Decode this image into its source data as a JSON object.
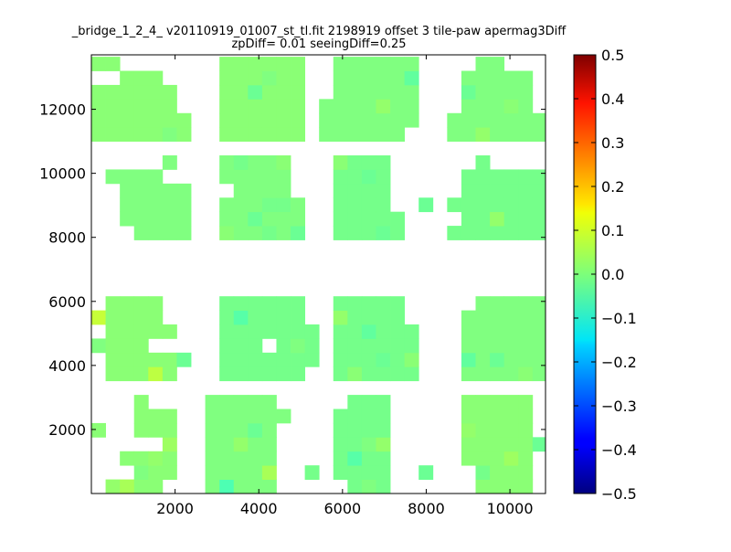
{
  "chart_data": {
    "type": "heatmap",
    "title_line1": "_bridge_1_2_4_ v20110919_01007_st_tl.fit 2198919 offset 3 tile-paw apermag3Diff",
    "title_line2": "zpDiff= 0.01 seeingDiff=0.25",
    "xlim": [
      0,
      10850
    ],
    "ylim": [
      0,
      13700
    ],
    "x_ticks": [
      2000,
      4000,
      6000,
      8000,
      10000
    ],
    "y_ticks": [
      2000,
      4000,
      6000,
      8000,
      10000,
      12000
    ],
    "colorbar": {
      "colormap": "jet",
      "vmin": -0.5,
      "vmax": 0.5,
      "ticks": [
        "0.5",
        "0.4",
        "0.3",
        "0.2",
        "0.1",
        "0.0",
        "−0.1",
        "−0.2",
        "−0.3",
        "−0.4",
        "−0.5"
      ]
    },
    "cell_size": [
      340,
      440
    ],
    "grid_origin": [
      0,
      0
    ],
    "background_value": 0.0,
    "blocks": [
      {
        "name": "row1-col1",
        "cols": [
          0,
          6
        ],
        "rows": [
          0,
          6
        ],
        "value": 0.01
      },
      {
        "name": "row1-col2",
        "cols": [
          8,
          13
        ],
        "rows": [
          0,
          6
        ],
        "value": 0.0
      },
      {
        "name": "row1-col3",
        "cols": [
          16,
          21
        ],
        "rows": [
          0,
          6
        ],
        "value": -0.01
      },
      {
        "name": "row1-col4",
        "cols": [
          25,
          31
        ],
        "rows": [
          0,
          6
        ],
        "value": 0.01
      },
      {
        "name": "row2-col1",
        "cols": [
          0,
          5
        ],
        "rows": [
          8,
          13
        ],
        "value": 0.01
      },
      {
        "name": "row2-col2",
        "cols": [
          8,
          15
        ],
        "rows": [
          8,
          13
        ],
        "value": -0.01
      },
      {
        "name": "row2-col3",
        "cols": [
          16,
          23
        ],
        "rows": [
          8,
          13
        ],
        "value": -0.01
      },
      {
        "name": "row2-col4",
        "cols": [
          25,
          31
        ],
        "rows": [
          8,
          13
        ],
        "value": 0.0
      },
      {
        "name": "row3-col1",
        "cols": [
          0,
          6
        ],
        "rows": [
          18,
          23
        ],
        "value": 0.0
      },
      {
        "name": "row3-col2",
        "cols": [
          8,
          14
        ],
        "rows": [
          18,
          23
        ],
        "value": 0.0
      },
      {
        "name": "row3-col3",
        "cols": [
          16,
          21
        ],
        "rows": [
          18,
          23
        ],
        "value": -0.01
      },
      {
        "name": "row3-col4",
        "cols": [
          25,
          31
        ],
        "rows": [
          18,
          23
        ],
        "value": -0.01
      },
      {
        "name": "row4-col1",
        "cols": [
          0,
          6
        ],
        "rows": [
          25,
          30
        ],
        "value": 0.01
      },
      {
        "name": "row4-col2",
        "cols": [
          8,
          15
        ],
        "rows": [
          25,
          30
        ],
        "value": 0.01
      },
      {
        "name": "row4-col3",
        "cols": [
          16,
          23
        ],
        "rows": [
          25,
          30
        ],
        "value": 0.0
      },
      {
        "name": "row4-col4",
        "cols": [
          25,
          31
        ],
        "rows": [
          25,
          30
        ],
        "value": 0.0
      }
    ],
    "cells": [
      [
        0,
        0,
        0.03
      ],
      [
        1,
        0,
        0.02
      ],
      [
        2,
        0,
        0.04
      ],
      [
        3,
        1,
        0.0
      ],
      [
        4,
        2,
        0.02
      ],
      [
        5,
        3,
        0.03
      ],
      [
        9,
        0,
        -0.05
      ],
      [
        12,
        1,
        0.04
      ],
      [
        14,
        2,
        0.03
      ],
      [
        15,
        1,
        -0.01
      ],
      [
        19,
        0,
        0.0
      ],
      [
        20,
        0,
        -0.01
      ],
      [
        21,
        2,
        0.02
      ],
      [
        24,
        0,
        0.0
      ],
      [
        27,
        1,
        -0.01
      ],
      [
        10,
        3,
        0.02
      ],
      [
        12,
        0,
        0.0
      ],
      [
        11,
        4,
        -0.02
      ],
      [
        13,
        2,
        -0.03
      ],
      [
        18,
        2,
        -0.04
      ],
      [
        19,
        3,
        0.0
      ],
      [
        20,
        3,
        0.02
      ],
      [
        22,
        2,
        0.01
      ],
      [
        23,
        1,
        -0.02
      ],
      [
        26,
        4,
        0.02
      ],
      [
        29,
        2,
        0.03
      ],
      [
        30,
        1,
        0.01
      ],
      [
        31,
        3,
        -0.02
      ],
      [
        4,
        8,
        0.06
      ],
      [
        0,
        10,
        0.0
      ],
      [
        6,
        9,
        -0.02
      ],
      [
        14,
        10,
        0.0
      ],
      [
        15,
        11,
        -0.01
      ],
      [
        18,
        8,
        0.01
      ],
      [
        20,
        9,
        -0.02
      ],
      [
        22,
        9,
        0.01
      ],
      [
        23,
        11,
        -0.02
      ],
      [
        26,
        9,
        -0.03
      ],
      [
        28,
        9,
        -0.02
      ],
      [
        30,
        8,
        0.01
      ],
      [
        31,
        10,
        0.0
      ],
      [
        0,
        12,
        0.07
      ],
      [
        10,
        12,
        -0.04
      ],
      [
        17,
        12,
        0.02
      ],
      [
        19,
        11,
        -0.03
      ],
      [
        4,
        16,
        0.03
      ],
      [
        3,
        16,
        0.0
      ],
      [
        2,
        17,
        0.02
      ],
      [
        5,
        17,
        -0.01
      ],
      [
        6,
        17,
        0.0
      ],
      [
        9,
        18,
        0.01
      ],
      [
        11,
        19,
        -0.02
      ],
      [
        12,
        18,
        -0.01
      ],
      [
        12,
        20,
        -0.01
      ],
      [
        13,
        20,
        -0.01
      ],
      [
        14,
        18,
        -0.02
      ],
      [
        18,
        19,
        -0.01
      ],
      [
        20,
        18,
        -0.02
      ],
      [
        23,
        20,
        -0.02
      ],
      [
        24,
        19,
        -0.01
      ],
      [
        27,
        18,
        -0.01
      ],
      [
        28,
        19,
        0.02
      ],
      [
        29,
        20,
        -0.01
      ],
      [
        30,
        18,
        -0.01
      ],
      [
        1,
        22,
        0.0
      ],
      [
        3,
        24,
        0.03
      ],
      [
        5,
        25,
        0.0
      ],
      [
        9,
        24,
        0.03
      ],
      [
        10,
        23,
        -0.01
      ],
      [
        13,
        23,
        0.01
      ],
      [
        17,
        23,
        0.01
      ],
      [
        19,
        22,
        -0.02
      ],
      [
        21,
        24,
        -0.01
      ],
      [
        27,
        25,
        0.02
      ],
      [
        30,
        23,
        0.0
      ],
      [
        11,
        28,
        -0.02
      ],
      [
        12,
        29,
        0.0
      ],
      [
        18,
        28,
        0.0
      ],
      [
        20,
        27,
        0.02
      ],
      [
        22,
        29,
        -0.03
      ],
      [
        26,
        28,
        -0.02
      ],
      [
        29,
        27,
        0.01
      ]
    ],
    "holes": [
      [
        0,
        0
      ],
      [
        0,
        1
      ],
      [
        1,
        1
      ],
      [
        2,
        1
      ],
      [
        0,
        2
      ],
      [
        1,
        2
      ],
      [
        0,
        3
      ],
      [
        1,
        3
      ],
      [
        2,
        3
      ],
      [
        3,
        3
      ],
      [
        4,
        3
      ],
      [
        1,
        4
      ],
      [
        2,
        4
      ],
      [
        0,
        5
      ],
      [
        1,
        5
      ],
      [
        2,
        5
      ],
      [
        0,
        6
      ],
      [
        1,
        6
      ],
      [
        2,
        6
      ],
      [
        4,
        6
      ],
      [
        5,
        0
      ],
      [
        6,
        0
      ],
      [
        6,
        1
      ],
      [
        6,
        2
      ],
      [
        6,
        3
      ],
      [
        6,
        4
      ],
      [
        6,
        5
      ],
      [
        5,
        6
      ],
      [
        6,
        6
      ],
      [
        13,
        0
      ],
      [
        13,
        1
      ],
      [
        13,
        2
      ],
      [
        14,
        2
      ],
      [
        13,
        3
      ],
      [
        13,
        4
      ],
      [
        13,
        6
      ],
      [
        16,
        0
      ],
      [
        17,
        0
      ],
      [
        16,
        1
      ],
      [
        16,
        2
      ],
      [
        16,
        3
      ],
      [
        16,
        4
      ],
      [
        16,
        5
      ],
      [
        17,
        6
      ],
      [
        16,
        6
      ],
      [
        21,
        0
      ],
      [
        21,
        1
      ],
      [
        22,
        1
      ],
      [
        21,
        2
      ],
      [
        21,
        3
      ],
      [
        21,
        4
      ],
      [
        21,
        5
      ],
      [
        21,
        6
      ],
      [
        25,
        0
      ],
      [
        26,
        0
      ],
      [
        25,
        1
      ],
      [
        26,
        1
      ],
      [
        25,
        2
      ],
      [
        25,
        3
      ],
      [
        25,
        4
      ],
      [
        25,
        5
      ],
      [
        25,
        6
      ],
      [
        31,
        0
      ],
      [
        31,
        1
      ],
      [
        31,
        2
      ],
      [
        31,
        4
      ],
      [
        31,
        5
      ],
      [
        31,
        6
      ],
      [
        0,
        8
      ],
      [
        0,
        9
      ],
      [
        0,
        11
      ],
      [
        0,
        13
      ],
      [
        4,
        10
      ],
      [
        5,
        10
      ],
      [
        6,
        10
      ],
      [
        5,
        12
      ],
      [
        6,
        12
      ],
      [
        5,
        13
      ],
      [
        8,
        8
      ],
      [
        8,
        9
      ],
      [
        8,
        10
      ],
      [
        8,
        11
      ],
      [
        8,
        12
      ],
      [
        8,
        13
      ],
      [
        12,
        10
      ],
      [
        15,
        13
      ],
      [
        15,
        8
      ],
      [
        15,
        12
      ],
      [
        16,
        8
      ],
      [
        16,
        9
      ],
      [
        16,
        10
      ],
      [
        16,
        11
      ],
      [
        16,
        12
      ],
      [
        16,
        13
      ],
      [
        23,
        8
      ],
      [
        23,
        9
      ],
      [
        23,
        10
      ],
      [
        23,
        11
      ],
      [
        23,
        12
      ],
      [
        23,
        13
      ],
      [
        22,
        13
      ],
      [
        22,
        12
      ],
      [
        25,
        8
      ],
      [
        25,
        9
      ],
      [
        25,
        10
      ],
      [
        25,
        11
      ],
      [
        25,
        12
      ],
      [
        25,
        13
      ],
      [
        26,
        13
      ],
      [
        0,
        18
      ],
      [
        1,
        18
      ],
      [
        2,
        18
      ],
      [
        0,
        19
      ],
      [
        1,
        19
      ],
      [
        0,
        20
      ],
      [
        1,
        20
      ],
      [
        0,
        21
      ],
      [
        1,
        21
      ],
      [
        0,
        22
      ],
      [
        0,
        23
      ],
      [
        1,
        23
      ],
      [
        2,
        23
      ],
      [
        3,
        23
      ],
      [
        4,
        23
      ],
      [
        5,
        22
      ],
      [
        6,
        23
      ],
      [
        6,
        22
      ],
      [
        8,
        18
      ],
      [
        8,
        19
      ],
      [
        8,
        20
      ],
      [
        8,
        21
      ],
      [
        9,
        21
      ],
      [
        8,
        22
      ],
      [
        8,
        23
      ],
      [
        14,
        21
      ],
      [
        14,
        22
      ],
      [
        14,
        23
      ],
      [
        16,
        18
      ],
      [
        16,
        19
      ],
      [
        16,
        20
      ],
      [
        16,
        21
      ],
      [
        16,
        22
      ],
      [
        16,
        23
      ],
      [
        21,
        20
      ],
      [
        21,
        21
      ],
      [
        21,
        22
      ],
      [
        21,
        23
      ],
      [
        25,
        19
      ],
      [
        25,
        21
      ],
      [
        25,
        22
      ],
      [
        25,
        23
      ],
      [
        26,
        23
      ],
      [
        28,
        23
      ],
      [
        29,
        23
      ],
      [
        30,
        23
      ],
      [
        31,
        23
      ],
      [
        5,
        30
      ],
      [
        6,
        30
      ],
      [
        5,
        29
      ],
      [
        6,
        29
      ],
      [
        0,
        29
      ],
      [
        1,
        29
      ],
      [
        2,
        30
      ],
      [
        3,
        30
      ],
      [
        4,
        30
      ],
      [
        6,
        27
      ],
      [
        6,
        28
      ],
      [
        8,
        25
      ],
      [
        8,
        26
      ],
      [
        8,
        27
      ],
      [
        8,
        28
      ],
      [
        8,
        29
      ],
      [
        8,
        30
      ],
      [
        15,
        25
      ],
      [
        15,
        26
      ],
      [
        15,
        27
      ],
      [
        15,
        28
      ],
      [
        15,
        29
      ],
      [
        15,
        30
      ],
      [
        16,
        28
      ],
      [
        16,
        29
      ],
      [
        16,
        30
      ],
      [
        23,
        25
      ],
      [
        22,
        25
      ],
      [
        23,
        26
      ],
      [
        23,
        27
      ],
      [
        23,
        28
      ],
      [
        23,
        29
      ],
      [
        23,
        30
      ],
      [
        25,
        27
      ],
      [
        25,
        28
      ],
      [
        25,
        29
      ],
      [
        25,
        30
      ],
      [
        26,
        30
      ],
      [
        31,
        27
      ],
      [
        31,
        28
      ],
      [
        31,
        29
      ],
      [
        31,
        30
      ],
      [
        30,
        30
      ],
      [
        29,
        30
      ],
      [
        7,
        0
      ],
      [
        7,
        1
      ],
      [
        7,
        2
      ],
      [
        7,
        3
      ],
      [
        7,
        4
      ],
      [
        7,
        5
      ],
      [
        7,
        6
      ],
      [
        14,
        0
      ],
      [
        14,
        1
      ],
      [
        14,
        3
      ],
      [
        14,
        4
      ],
      [
        14,
        5
      ],
      [
        14,
        6
      ],
      [
        15,
        0
      ],
      [
        15,
        2
      ],
      [
        15,
        3
      ],
      [
        15,
        4
      ],
      [
        15,
        5
      ],
      [
        15,
        6
      ],
      [
        22,
        0
      ],
      [
        22,
        2
      ],
      [
        22,
        3
      ],
      [
        22,
        4
      ],
      [
        22,
        5
      ],
      [
        22,
        6
      ],
      [
        23,
        0
      ],
      [
        23,
        2
      ],
      [
        23,
        3
      ],
      [
        23,
        4
      ],
      [
        23,
        5
      ],
      [
        23,
        6
      ],
      [
        24,
        1
      ],
      [
        24,
        2
      ],
      [
        24,
        3
      ],
      [
        24,
        4
      ],
      [
        24,
        5
      ],
      [
        24,
        6
      ]
    ],
    "extra_white_rows": [
      7,
      14,
      15,
      16,
      17,
      24,
      31
    ],
    "extra_white_cols": [
      7,
      24
    ]
  }
}
